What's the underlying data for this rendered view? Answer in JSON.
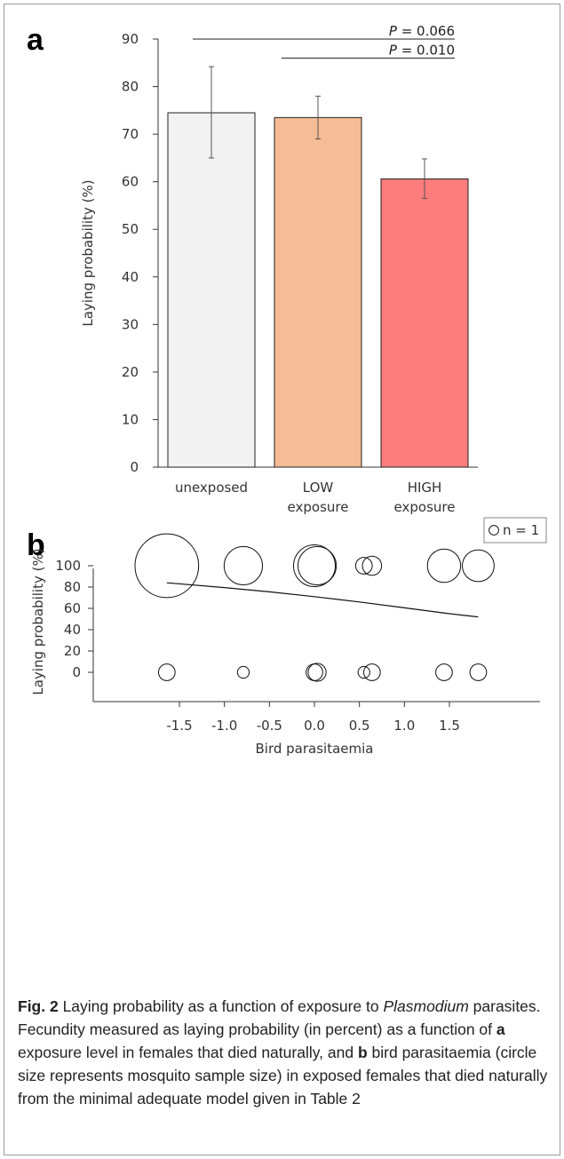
{
  "chart_data": [
    {
      "type": "bar",
      "panel_label": "a",
      "categories": [
        "unexposed",
        "LOW\nexposure",
        "HIGH\nexposure"
      ],
      "values": [
        74.5,
        73.5,
        60.6
      ],
      "error_low": [
        65.0,
        69.0,
        56.5
      ],
      "error_high": [
        84.2,
        78.0,
        64.8
      ],
      "bar_colors": [
        "#f2f2f2",
        "#f6bc96",
        "#fd7c7c"
      ],
      "ylabel": "Laying probability (%)",
      "ylim": [
        0,
        90
      ],
      "yticks": [
        0,
        10,
        20,
        30,
        40,
        50,
        60,
        70,
        80,
        90
      ],
      "grid": false,
      "significance": [
        {
          "p_letter": "P",
          "p_value": " = 0.066",
          "from": "unexposed",
          "to": "HIGH\nexposure",
          "y": 90
        },
        {
          "p_letter": "P",
          "p_value": " = 0.010",
          "from": "LOW\nexposure",
          "to": "HIGH\nexposure",
          "y": 86
        }
      ]
    },
    {
      "type": "scatter",
      "panel_label": "b",
      "xlabel": "Bird parasitaemia",
      "ylabel": "Laying probability (%)",
      "xticks": [
        -1.5,
        -1.0,
        -0.5,
        0.0,
        0.5,
        1.0,
        1.5
      ],
      "xtick_labels": [
        "-1.5",
        "-1.0",
        "-0.5",
        "0.0",
        "0.5",
        "1.0",
        "1.5"
      ],
      "yticks": [
        0,
        20,
        40,
        60,
        80,
        100
      ],
      "xlim": [
        -1.95,
        1.95
      ],
      "ylim": [
        -6,
        120
      ],
      "legend_label": "n = 1",
      "legend_position": "top-right",
      "points": [
        {
          "x": -1.64,
          "y": 100,
          "n": 44
        },
        {
          "x": -0.79,
          "y": 100,
          "n": 16
        },
        {
          "x": 0.0,
          "y": 100,
          "n": 19
        },
        {
          "x": 0.03,
          "y": 100,
          "n": 16
        },
        {
          "x": 0.55,
          "y": 100,
          "n": 3
        },
        {
          "x": 0.64,
          "y": 100,
          "n": 4
        },
        {
          "x": 1.44,
          "y": 100,
          "n": 12
        },
        {
          "x": 1.82,
          "y": 100,
          "n": 11
        },
        {
          "x": -1.64,
          "y": 0,
          "n": 3
        },
        {
          "x": -0.79,
          "y": 0,
          "n": 1.5
        },
        {
          "x": 0.0,
          "y": 0,
          "n": 3
        },
        {
          "x": 0.03,
          "y": 0,
          "n": 3.5
        },
        {
          "x": 0.55,
          "y": 0,
          "n": 1.5
        },
        {
          "x": 0.64,
          "y": 0,
          "n": 3
        },
        {
          "x": 1.44,
          "y": 0,
          "n": 3
        },
        {
          "x": 1.82,
          "y": 0,
          "n": 3
        }
      ],
      "fit_line": {
        "x": [
          -1.64,
          -1.0,
          -0.5,
          0.0,
          0.5,
          1.0,
          1.5,
          1.82
        ],
        "y": [
          84,
          79.5,
          75.5,
          71,
          66,
          60.5,
          55,
          52
        ]
      }
    }
  ],
  "caption": {
    "fig_label": "Fig. 2",
    "text_1": " Laying probability as a function of exposure to ",
    "italic_1": "Plasmodium",
    "text_2": " parasites. Fecundity measured as laying probability (in percent) as a function of ",
    "bold_a": "a",
    "text_3": " exposure level in females that died naturally, and ",
    "bold_b": "b",
    "text_4": " bird parasitaemia (circle size represents mosquito sample size) in exposed females that died naturally from the minimal adequate model given in Table 2"
  }
}
